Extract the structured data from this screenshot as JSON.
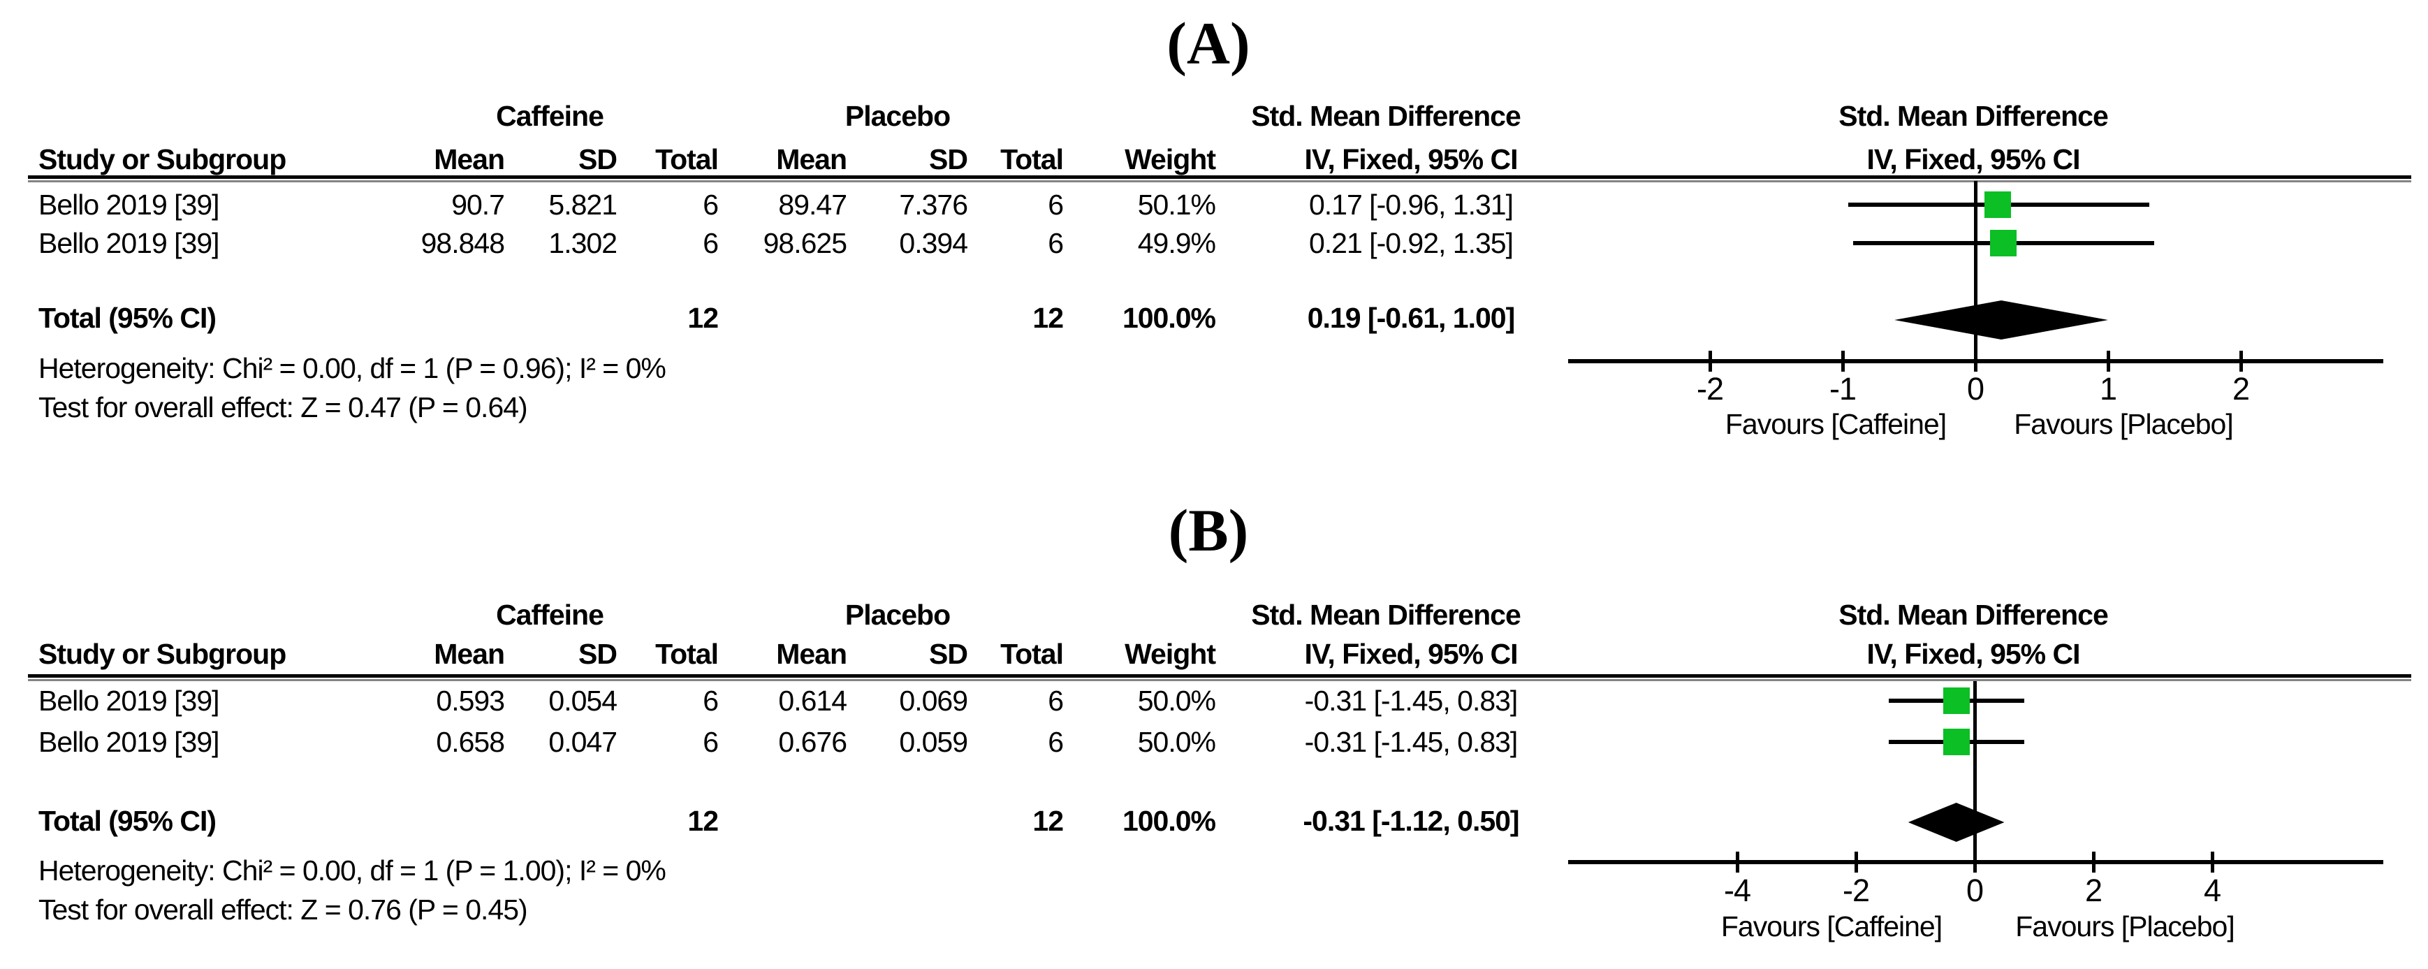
{
  "figure": {
    "panels": [
      {
        "label": "(A)",
        "groups": {
          "caffeine": "Caffeine",
          "placebo": "Placebo",
          "smd": "Std. Mean Difference"
        },
        "columns": {
          "study": "Study or Subgroup",
          "mean": "Mean",
          "sd": "SD",
          "total": "Total",
          "weight": "Weight",
          "iv": "IV, Fixed, 95% CI"
        },
        "rows": [
          {
            "study": "Bello 2019 [39]",
            "c_mean": "90.7",
            "c_sd": "5.821",
            "c_total": "6",
            "p_mean": "89.47",
            "p_sd": "7.376",
            "p_total": "6",
            "weight": "50.1%",
            "ci": "0.17 [-0.96, 1.31]"
          },
          {
            "study": "Bello 2019 [39]",
            "c_mean": "98.848",
            "c_sd": "1.302",
            "c_total": "6",
            "p_mean": "98.625",
            "p_sd": "0.394",
            "p_total": "6",
            "weight": "49.9%",
            "ci": "0.21 [-0.92, 1.35]"
          }
        ],
        "total_row": {
          "label": "Total (95% CI)",
          "c_total": "12",
          "p_total": "12",
          "weight": "100.0%",
          "ci": "0.19 [-0.61, 1.00]"
        },
        "heterogeneity": "Heterogeneity: Chi² = 0.00, df = 1 (P = 0.96); I² = 0%",
        "overall": "Test for overall effect: Z = 0.47 (P = 0.64)"
      },
      {
        "label": "(B)",
        "groups": {
          "caffeine": "Caffeine",
          "placebo": "Placebo",
          "smd": "Std. Mean Difference"
        },
        "columns": {
          "study": "Study or Subgroup",
          "mean": "Mean",
          "sd": "SD",
          "total": "Total",
          "weight": "Weight",
          "iv": "IV, Fixed, 95% CI"
        },
        "rows": [
          {
            "study": "Bello 2019 [39]",
            "c_mean": "0.593",
            "c_sd": "0.054",
            "c_total": "6",
            "p_mean": "0.614",
            "p_sd": "0.069",
            "p_total": "6",
            "weight": "50.0%",
            "ci": "-0.31 [-1.45, 0.83]"
          },
          {
            "study": "Bello 2019 [39]",
            "c_mean": "0.658",
            "c_sd": "0.047",
            "c_total": "6",
            "p_mean": "0.676",
            "p_sd": "0.059",
            "p_total": "6",
            "weight": "50.0%",
            "ci": "-0.31 [-1.45, 0.83]"
          }
        ],
        "total_row": {
          "label": "Total (95% CI)",
          "c_total": "12",
          "p_total": "12",
          "weight": "100.0%",
          "ci": "-0.31 [-1.12, 0.50]"
        },
        "heterogeneity": "Heterogeneity: Chi² = 0.00, df = 1 (P = 1.00); I² = 0%",
        "overall": "Test for overall effect: Z = 0.76 (P = 0.45)"
      }
    ]
  },
  "chart_data": [
    {
      "type": "forest",
      "panel": "A",
      "title": "(A)",
      "effect_label": "Std. Mean Difference",
      "method_label": "IV, Fixed, 95% CI",
      "series": [
        {
          "name": "Bello 2019 [39]",
          "caffeine": {
            "mean": 90.7,
            "sd": 5.821,
            "total": 6
          },
          "placebo": {
            "mean": 89.47,
            "sd": 7.376,
            "total": 6
          },
          "weight_pct": 50.1,
          "est": 0.17,
          "ci": [
            -0.96,
            1.31
          ]
        },
        {
          "name": "Bello 2019 [39]",
          "caffeine": {
            "mean": 98.848,
            "sd": 1.302,
            "total": 6
          },
          "placebo": {
            "mean": 98.625,
            "sd": 0.394,
            "total": 6
          },
          "weight_pct": 49.9,
          "est": 0.21,
          "ci": [
            -0.92,
            1.35
          ]
        }
      ],
      "total": {
        "label": "Total (95% CI)",
        "caffeine_total": 12,
        "placebo_total": 12,
        "weight_pct": 100.0,
        "est": 0.19,
        "ci": [
          -0.61,
          1.0
        ]
      },
      "heterogeneity": "Heterogeneity: Chi² = 0.00, df = 1 (P = 0.96); I² = 0%",
      "overall_effect": "Test for overall effect: Z = 0.47 (P = 0.64)",
      "xticks": [
        -2,
        -1,
        0,
        1,
        2
      ],
      "xlim": [
        -3.1,
        3.05
      ],
      "xlabel_left": "Favours [Caffeine]",
      "xlabel_right": "Favours [Placebo]",
      "marker_color": "#0bbf24",
      "diamond_color": "#000000"
    },
    {
      "type": "forest",
      "panel": "B",
      "title": "(B)",
      "effect_label": "Std. Mean Difference",
      "method_label": "IV, Fixed, 95% CI",
      "series": [
        {
          "name": "Bello 2019 [39]",
          "caffeine": {
            "mean": 0.593,
            "sd": 0.054,
            "total": 6
          },
          "placebo": {
            "mean": 0.614,
            "sd": 0.069,
            "total": 6
          },
          "weight_pct": 50.0,
          "est": -0.31,
          "ci": [
            -1.45,
            0.83
          ]
        },
        {
          "name": "Bello 2019 [39]",
          "caffeine": {
            "mean": 0.658,
            "sd": 0.047,
            "total": 6
          },
          "placebo": {
            "mean": 0.676,
            "sd": 0.059,
            "total": 6
          },
          "weight_pct": 50.0,
          "est": -0.31,
          "ci": [
            -1.45,
            0.83
          ]
        }
      ],
      "total": {
        "label": "Total (95% CI)",
        "caffeine_total": 12,
        "placebo_total": 12,
        "weight_pct": 100.0,
        "est": -0.31,
        "ci": [
          -1.12,
          0.5
        ]
      },
      "heterogeneity": "Heterogeneity: Chi² = 0.00, df = 1 (P = 1.00); I² = 0%",
      "overall_effect": "Test for overall effect: Z = 0.76 (P = 0.45)",
      "xticks": [
        -4,
        -2,
        0,
        2,
        4
      ],
      "xlim": [
        -6.9,
        6.9
      ],
      "xlabel_left": "Favours [Caffeine]",
      "xlabel_right": "Favours [Placebo]",
      "marker_color": "#0bbf24",
      "diamond_color": "#000000"
    }
  ]
}
